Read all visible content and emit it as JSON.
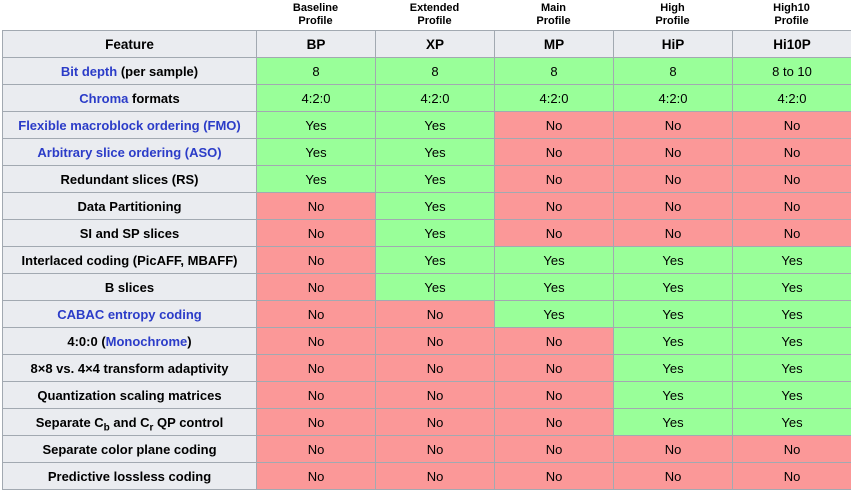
{
  "table": {
    "feature_header": "Feature",
    "profiles": [
      {
        "name": "Baseline\nProfile",
        "abbr": "BP"
      },
      {
        "name": "Extended\nProfile",
        "abbr": "XP"
      },
      {
        "name": "Main\nProfile",
        "abbr": "MP"
      },
      {
        "name": "High\nProfile",
        "abbr": "HiP"
      },
      {
        "name": "High10\nProfile",
        "abbr": "Hi10P"
      }
    ],
    "rows": [
      {
        "label": [
          {
            "text": "Bit depth",
            "link": true
          },
          {
            "text": " (per sample)"
          }
        ],
        "values": [
          "8",
          "8",
          "8",
          "8",
          "8 to 10"
        ]
      },
      {
        "label": [
          {
            "text": "Chroma",
            "link": true
          },
          {
            "text": " formats"
          }
        ],
        "values": [
          "4:2:0",
          "4:2:0",
          "4:2:0",
          "4:2:0",
          "4:2:0"
        ]
      },
      {
        "label": [
          {
            "text": "Flexible macroblock ordering (FMO)",
            "link": true
          }
        ],
        "values": [
          "Yes",
          "Yes",
          "No",
          "No",
          "No"
        ]
      },
      {
        "label": [
          {
            "text": "Arbitrary slice ordering (ASO)",
            "link": true
          }
        ],
        "values": [
          "Yes",
          "Yes",
          "No",
          "No",
          "No"
        ]
      },
      {
        "label": [
          {
            "text": "Redundant slices (RS)"
          }
        ],
        "values": [
          "Yes",
          "Yes",
          "No",
          "No",
          "No"
        ]
      },
      {
        "label": [
          {
            "text": "Data Partitioning"
          }
        ],
        "values": [
          "No",
          "Yes",
          "No",
          "No",
          "No"
        ]
      },
      {
        "label": [
          {
            "text": "SI and SP slices"
          }
        ],
        "values": [
          "No",
          "Yes",
          "No",
          "No",
          "No"
        ]
      },
      {
        "label": [
          {
            "text": "Interlaced coding (PicAFF, MBAFF)"
          }
        ],
        "values": [
          "No",
          "Yes",
          "Yes",
          "Yes",
          "Yes"
        ]
      },
      {
        "label": [
          {
            "text": "B slices"
          }
        ],
        "values": [
          "No",
          "Yes",
          "Yes",
          "Yes",
          "Yes"
        ]
      },
      {
        "label": [
          {
            "text": "CABAC entropy coding",
            "link": true
          }
        ],
        "values": [
          "No",
          "No",
          "Yes",
          "Yes",
          "Yes"
        ]
      },
      {
        "label": [
          {
            "text": "4:0:0 ("
          },
          {
            "text": "Monochrome",
            "link": true
          },
          {
            "text": ")"
          }
        ],
        "values": [
          "No",
          "No",
          "No",
          "Yes",
          "Yes"
        ]
      },
      {
        "label": [
          {
            "text": "8×8 vs. 4×4 transform adaptivity"
          }
        ],
        "values": [
          "No",
          "No",
          "No",
          "Yes",
          "Yes"
        ]
      },
      {
        "label": [
          {
            "text": "Quantization scaling matrices"
          }
        ],
        "values": [
          "No",
          "No",
          "No",
          "Yes",
          "Yes"
        ]
      },
      {
        "label": [
          {
            "text": "Separate C"
          },
          {
            "text": "b",
            "sub": true
          },
          {
            "text": " and C"
          },
          {
            "text": "r",
            "sub": true
          },
          {
            "text": " QP control"
          }
        ],
        "values": [
          "No",
          "No",
          "No",
          "Yes",
          "Yes"
        ]
      },
      {
        "label": [
          {
            "text": "Separate color plane coding"
          }
        ],
        "values": [
          "No",
          "No",
          "No",
          "No",
          "No"
        ]
      },
      {
        "label": [
          {
            "text": "Predictive lossless coding"
          }
        ],
        "values": [
          "No",
          "No",
          "No",
          "No",
          "No"
        ]
      }
    ]
  },
  "colors": {
    "yes_bg": "#99ff99",
    "no_bg": "#fb9898",
    "header_bg": "#eaecf0",
    "grid_border": "#a2a9b1",
    "outer_border": "#82878f",
    "link_blue": "#2b3cc8"
  }
}
